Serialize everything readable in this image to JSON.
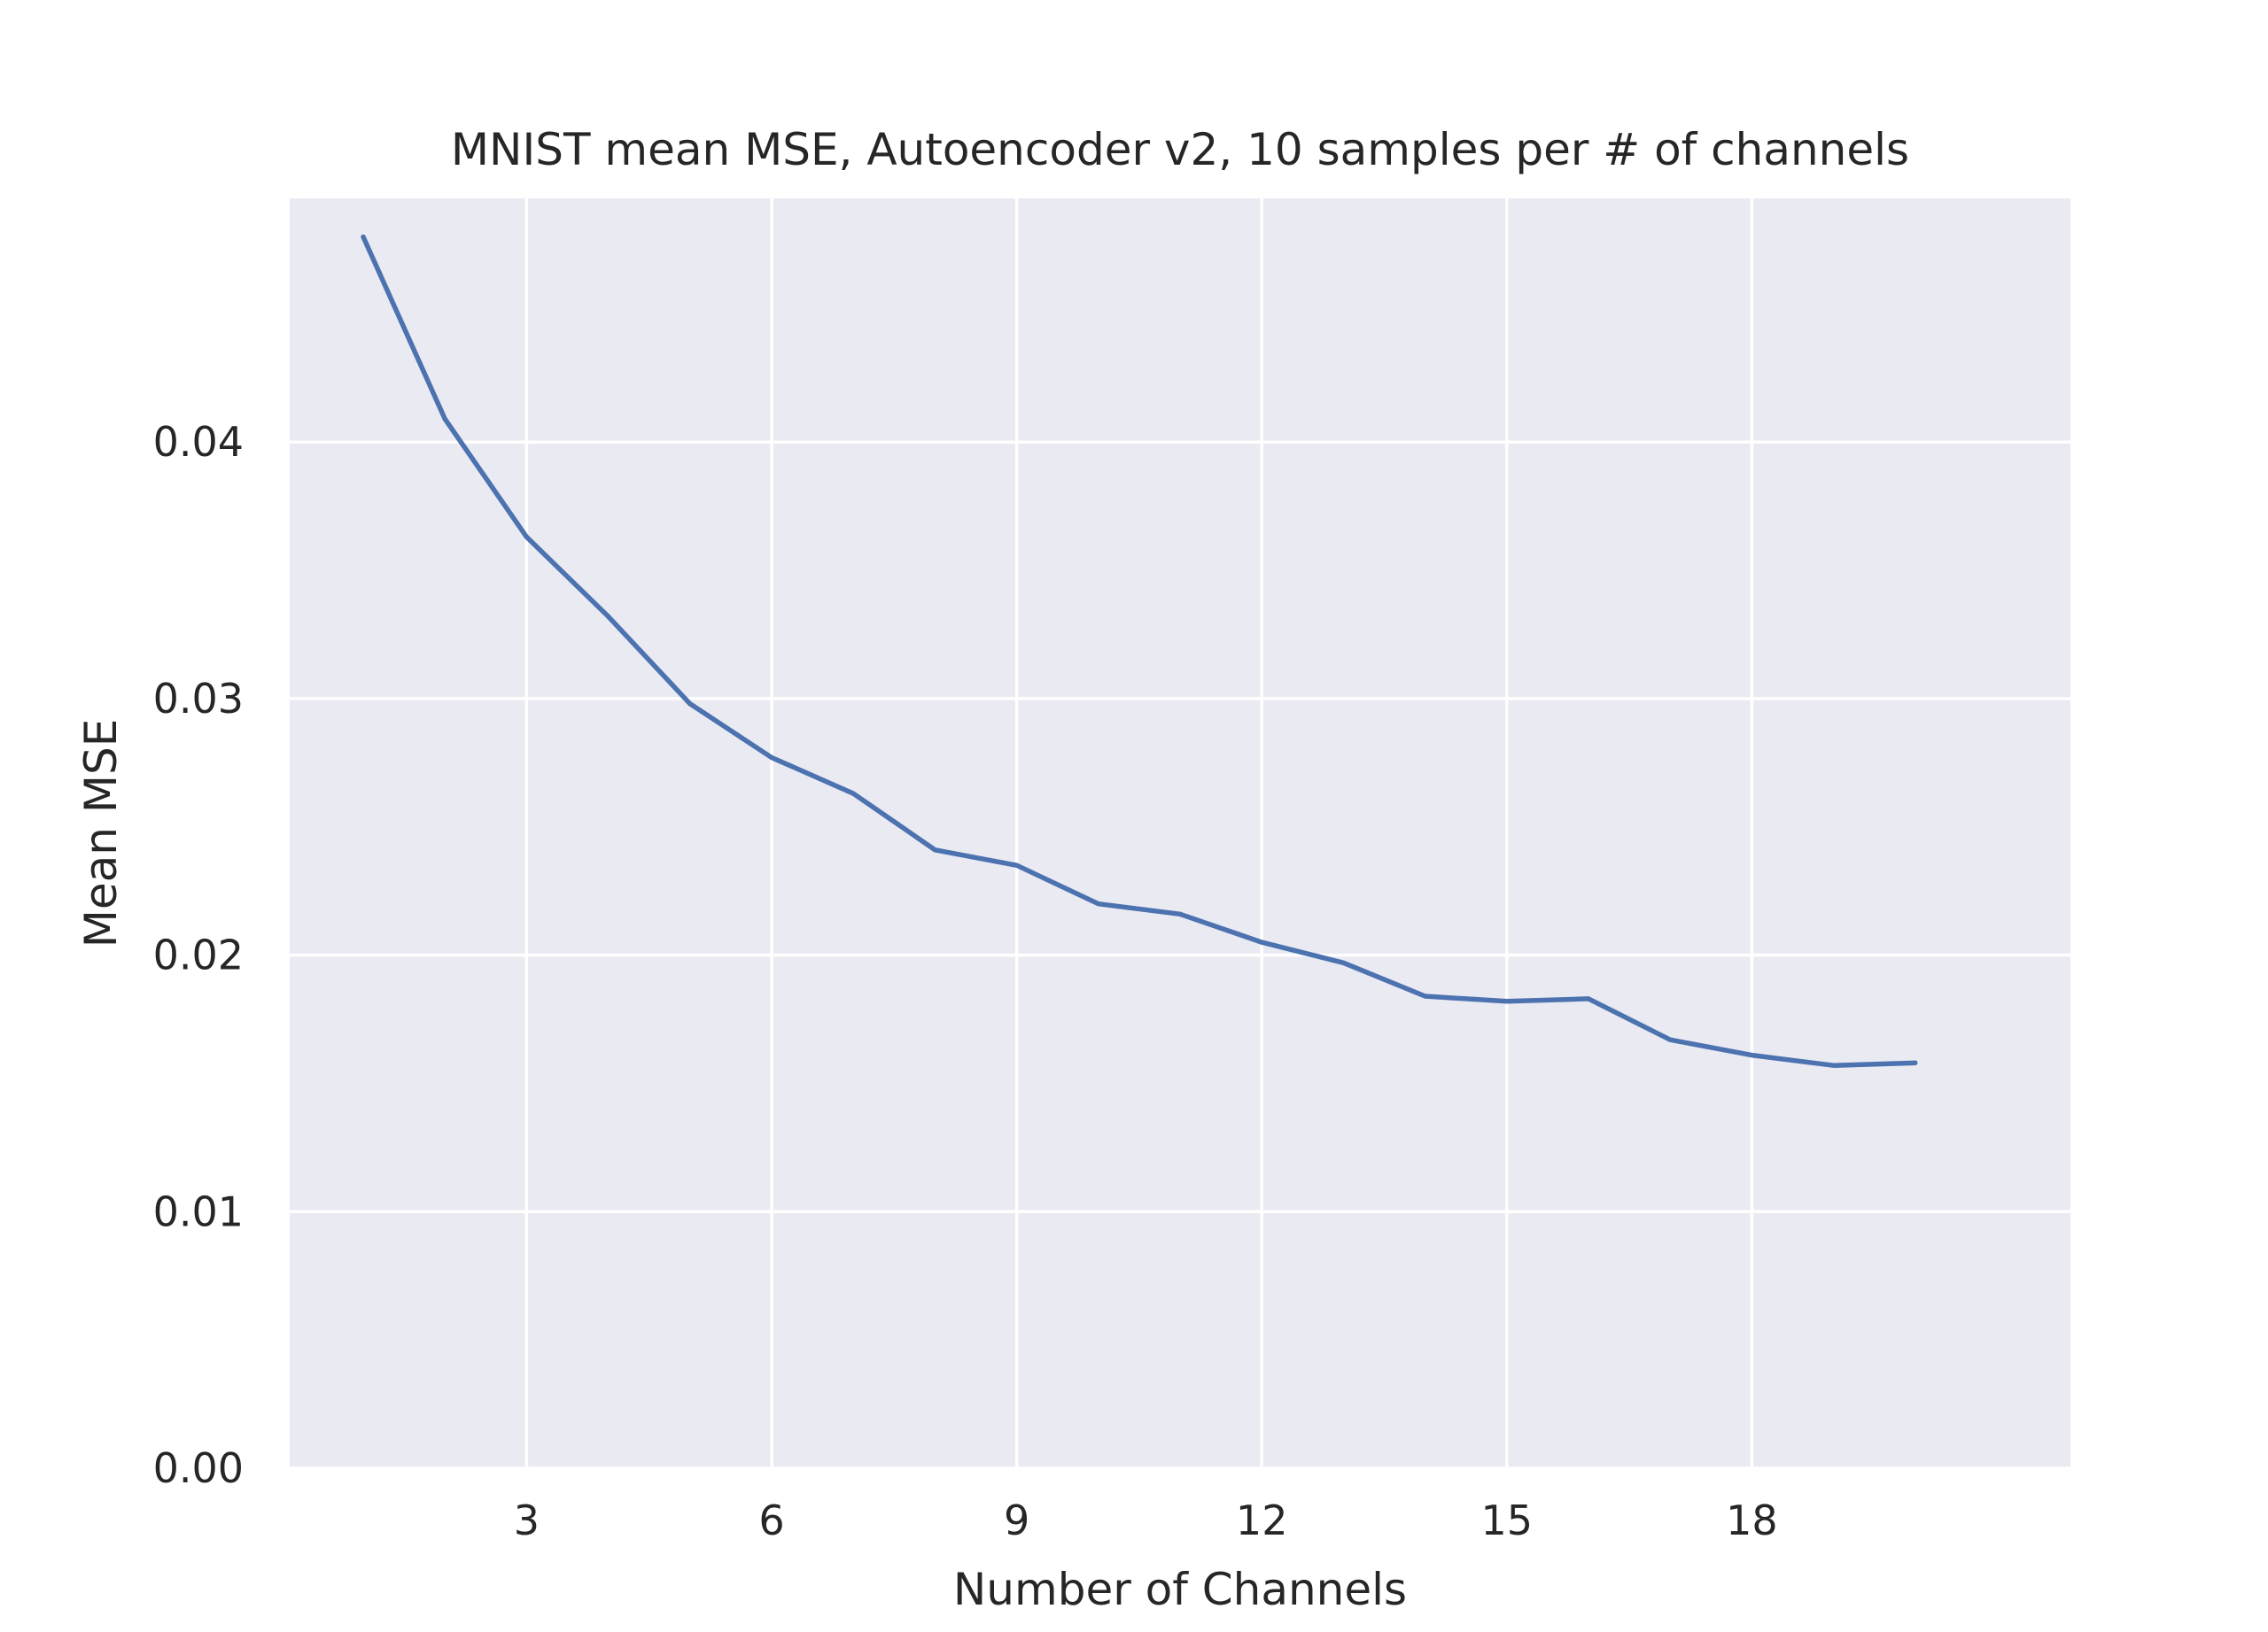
{
  "chart_data": {
    "type": "line",
    "title": "MNIST mean MSE, Autoencoder v2, 10 samples per # of channels",
    "xlabel": "Number of Channels",
    "ylabel": "Mean MSE",
    "xlim": [
      0.1,
      21.9
    ],
    "ylim": [
      0.0,
      0.0495
    ],
    "xticks": [
      3,
      6,
      9,
      12,
      15,
      18
    ],
    "xtick_labels": [
      "3",
      "6",
      "9",
      "12",
      "15",
      "18"
    ],
    "yticks": [
      0.0,
      0.01,
      0.02,
      0.03,
      0.04
    ],
    "ytick_labels": [
      "0.00",
      "0.01",
      "0.02",
      "0.03",
      "0.04"
    ],
    "grid": true,
    "style": "seaborn-darkgrid",
    "background_color": "#eaeaf2",
    "grid_color": "#ffffff",
    "series": [
      {
        "color": "#4c72b0",
        "x": [
          1,
          2,
          3,
          4,
          5,
          6,
          7,
          8,
          9,
          10,
          11,
          12,
          13,
          14,
          15,
          16,
          17,
          18,
          19,
          20
        ],
        "values": [
          0.048,
          0.0409,
          0.0363,
          0.0332,
          0.0298,
          0.0277,
          0.0263,
          0.0241,
          0.0235,
          0.022,
          0.0216,
          0.0205,
          0.0197,
          0.0184,
          0.0182,
          0.0183,
          0.0167,
          0.0161,
          0.0157,
          0.0158
        ]
      }
    ]
  }
}
